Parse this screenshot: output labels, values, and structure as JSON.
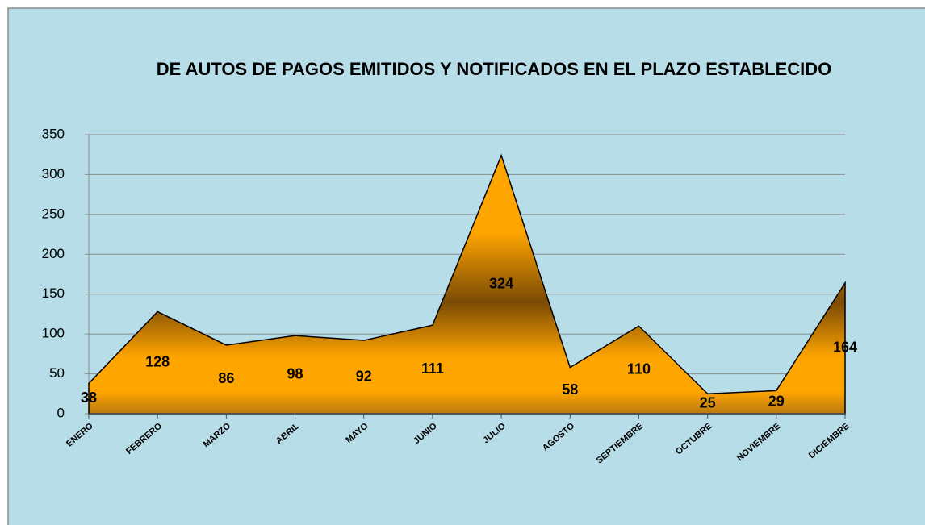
{
  "chart_data": {
    "type": "area",
    "title": "DE AUTOS DE PAGOS EMITIDOS Y NOTIFICADOS EN EL PLAZO ESTABLECIDO",
    "categories": [
      "ENERO",
      "FEBRERO",
      "MARZO",
      "ABRIL",
      "MAYO",
      "JUNIO",
      "JULIO",
      "AGOSTO",
      "SEPTIEMBRE",
      "OCTUBRE",
      "NOVIEMBRE",
      "DICIEMBRE"
    ],
    "values": [
      38,
      128,
      86,
      98,
      92,
      111,
      324,
      58,
      110,
      25,
      29,
      164
    ],
    "color": "#ffa500",
    "ylim": [
      0,
      350
    ],
    "yticks": [
      0,
      50,
      100,
      150,
      200,
      250,
      300,
      350
    ],
    "grid": true
  }
}
